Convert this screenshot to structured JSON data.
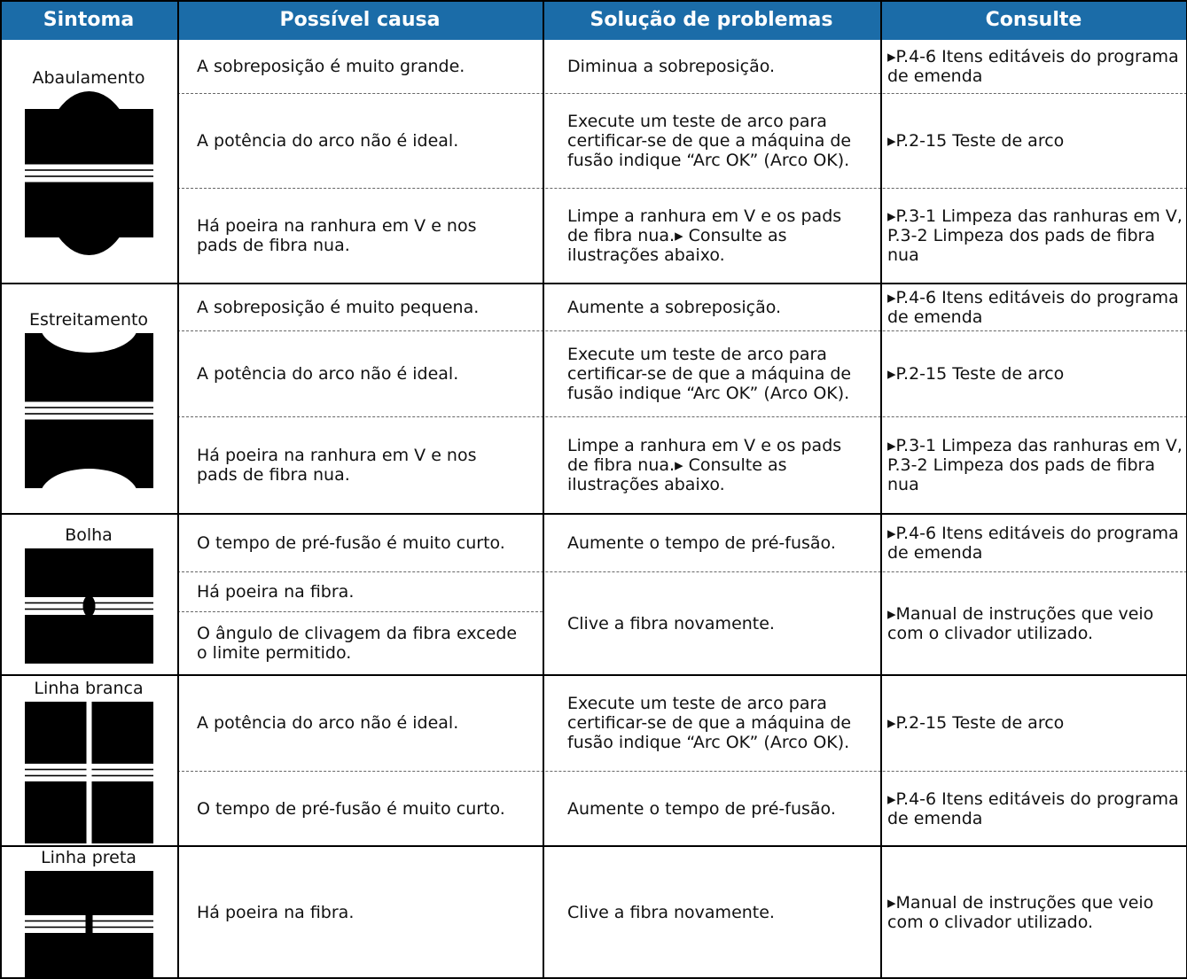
{
  "header": [
    "Sintoma",
    "Possível causa",
    "Solução de problemas",
    "Consulte"
  ],
  "groups": [
    {
      "symptom": "Abaulamento",
      "rows": [
        {
          "causes": [
            "A sobreposição é muito grande."
          ],
          "solution": "Diminua a sobreposição.",
          "reference": "▸P.4-6 Itens editáveis do programa de emenda"
        },
        {
          "causes": [
            "A potência do arco não é ideal."
          ],
          "solution": "Execute um teste de arco para certificar-se de que a máquina de fusão indique “Arc OK” (Arco OK).",
          "reference": "▸P.2-15 Teste de arco"
        },
        {
          "causes": [
            "Há poeira na ranhura em V e nos pads de fibra nua."
          ],
          "solution": "Limpe a ranhura em V e os pads de fibra nua.▸ Consulte as ilustrações abaixo.",
          "reference": "▸P.3-1 Limpeza das ranhuras em V, P.3-2 Limpeza dos pads de fibra nua"
        }
      ]
    },
    {
      "symptom": "Estreitamento",
      "rows": [
        {
          "causes": [
            "A sobreposição é muito pequena."
          ],
          "solution": "Aumente a sobreposição.",
          "reference": "▸P.4-6 Itens editáveis do programa de emenda"
        },
        {
          "causes": [
            "A potência do arco não é ideal."
          ],
          "solution": "Execute um teste de arco para certificar-se de que a máquina de fusão indique “Arc OK” (Arco OK).",
          "reference": "▸P.2-15 Teste de arco"
        },
        {
          "causes": [
            "Há poeira na ranhura em V e nos pads de fibra nua."
          ],
          "solution": "Limpe a ranhura em V e os pads de fibra nua.▸ Consulte as ilustrações abaixo.",
          "reference": "▸P.3-1 Limpeza das ranhuras em V, P.3-2 Limpeza dos pads de fibra nua"
        }
      ]
    },
    {
      "symptom": "Bolha",
      "rows": [
        {
          "causes": [
            "O tempo de pré-fusão é muito curto."
          ],
          "solution": "Aumente o tempo de pré-fusão.",
          "reference": "▸P.4-6 Itens editáveis do programa de emenda"
        },
        {
          "causes": [
            "Há poeira na fibra.",
            "O ângulo de clivagem da fibra excede o limite permitido."
          ],
          "solution": "Clive a fibra novamente.",
          "reference": "▸Manual de instruções que veio com o clivador utilizado."
        }
      ]
    },
    {
      "symptom": "Linha branca",
      "rows": [
        {
          "causes": [
            "A potência do arco não é ideal."
          ],
          "solution": "Execute um teste de arco para certificar-se de que a máquina de fusão indique “Arc OK” (Arco OK).",
          "reference": "▸P.2-15 Teste de arco"
        },
        {
          "causes": [
            "O tempo de pré-fusão é muito curto."
          ],
          "solution": "Aumente o tempo de pré-fusão.",
          "reference": "▸P.4-6 Itens editáveis do programa de emenda"
        }
      ]
    },
    {
      "symptom": "Linha preta",
      "rows": [
        {
          "causes": [
            "Há poeira na fibra."
          ],
          "solution": "Clive a fibra novamente.",
          "reference": "▸Manual de instruções que veio com o clivador utilizado."
        }
      ]
    }
  ]
}
